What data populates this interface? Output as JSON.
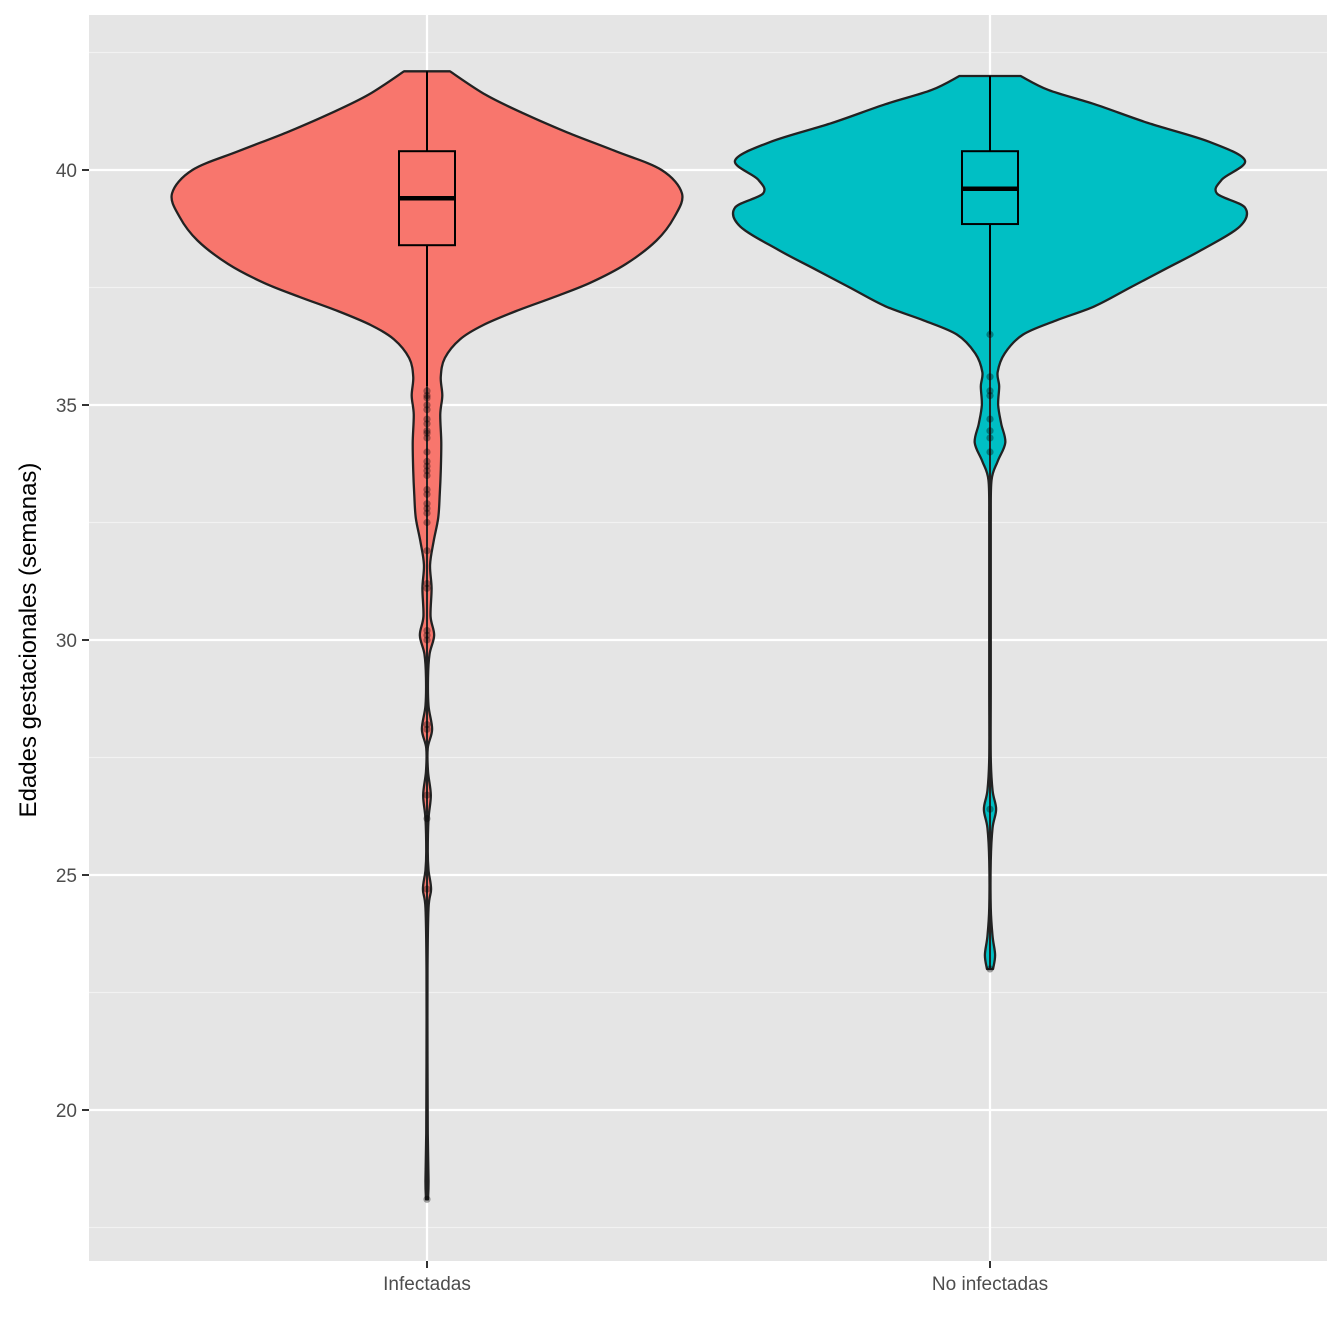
{
  "chart_data": {
    "type": "violin",
    "title": "",
    "xlabel": "",
    "ylabel": "Edades gestacionales (semanas)",
    "ylim": [
      17.0,
      43.5
    ],
    "y_ticks": [
      20,
      25,
      30,
      35,
      40
    ],
    "y_tick_labels": [
      "20",
      "25",
      "30",
      "35",
      "40"
    ],
    "grid": true,
    "legend": "none",
    "categories": [
      "Infectadas",
      "No infectadas"
    ],
    "series": [
      {
        "category": "Infectadas",
        "color": "#F8766D",
        "min": 18.1,
        "max": 42.1,
        "box": {
          "q1": 38.4,
          "median": 39.4,
          "q3": 40.4,
          "whisker_low": 35.4,
          "whisker_high": 42.1
        },
        "density": [
          [
            18.1,
            0.004
          ],
          [
            18.5,
            0.006
          ],
          [
            19.5,
            0.003
          ],
          [
            21,
            0.002
          ],
          [
            23,
            0.002
          ],
          [
            24.3,
            0.006
          ],
          [
            24.7,
            0.016
          ],
          [
            25.1,
            0.006
          ],
          [
            25.5,
            0.003
          ],
          [
            26.2,
            0.006
          ],
          [
            26.7,
            0.015
          ],
          [
            27.2,
            0.004
          ],
          [
            27.7,
            0.003
          ],
          [
            28.1,
            0.02
          ],
          [
            28.6,
            0.006
          ],
          [
            29.2,
            0.004
          ],
          [
            29.7,
            0.01
          ],
          [
            30.1,
            0.028
          ],
          [
            30.5,
            0.014
          ],
          [
            31.1,
            0.018
          ],
          [
            31.6,
            0.012
          ],
          [
            32.1,
            0.026
          ],
          [
            32.6,
            0.044
          ],
          [
            33.1,
            0.05
          ],
          [
            33.6,
            0.054
          ],
          [
            34.2,
            0.056
          ],
          [
            34.8,
            0.052
          ],
          [
            35.2,
            0.06
          ],
          [
            35.6,
            0.054
          ],
          [
            36.0,
            0.07
          ],
          [
            36.4,
            0.13
          ],
          [
            36.7,
            0.22
          ],
          [
            37.0,
            0.35
          ],
          [
            37.3,
            0.5
          ],
          [
            37.6,
            0.64
          ],
          [
            38.0,
            0.78
          ],
          [
            38.5,
            0.9
          ],
          [
            39.0,
            0.97
          ],
          [
            39.5,
            1.0
          ],
          [
            40.0,
            0.92
          ],
          [
            40.4,
            0.74
          ],
          [
            40.8,
            0.55
          ],
          [
            41.2,
            0.38
          ],
          [
            41.6,
            0.23
          ],
          [
            42.1,
            0.09
          ]
        ],
        "points": [
          35.3,
          35.2,
          35.15,
          35.0,
          34.9,
          34.7,
          34.6,
          34.45,
          34.4,
          34.3,
          34.0,
          33.8,
          33.7,
          33.6,
          33.5,
          33.2,
          33.1,
          32.9,
          32.8,
          32.7,
          32.5,
          31.9,
          31.2,
          31.1,
          30.2,
          30.1,
          30.0,
          28.2,
          28.1,
          26.7,
          26.2,
          24.7,
          18.1
        ]
      },
      {
        "category": "No infectadas",
        "color": "#00BFC4",
        "min": 23.0,
        "max": 42.0,
        "box": {
          "q1": 38.85,
          "median": 39.6,
          "q3": 40.4,
          "whisker_low": 36.5,
          "whisker_high": 42.0
        },
        "density": [
          [
            23.0,
            0.012
          ],
          [
            23.3,
            0.02
          ],
          [
            23.7,
            0.01
          ],
          [
            24.3,
            0.003
          ],
          [
            25.3,
            0.003
          ],
          [
            26.0,
            0.01
          ],
          [
            26.4,
            0.024
          ],
          [
            26.8,
            0.01
          ],
          [
            27.5,
            0.003
          ],
          [
            29,
            0.003
          ],
          [
            31,
            0.003
          ],
          [
            32.5,
            0.003
          ],
          [
            33.4,
            0.006
          ],
          [
            33.8,
            0.03
          ],
          [
            34.2,
            0.06
          ],
          [
            34.6,
            0.044
          ],
          [
            35.0,
            0.032
          ],
          [
            35.4,
            0.036
          ],
          [
            35.7,
            0.03
          ],
          [
            36.1,
            0.058
          ],
          [
            36.5,
            0.13
          ],
          [
            36.8,
            0.26
          ],
          [
            37.1,
            0.41
          ],
          [
            37.5,
            0.55
          ],
          [
            37.9,
            0.69
          ],
          [
            38.3,
            0.83
          ],
          [
            38.8,
            0.98
          ],
          [
            39.2,
            1.0
          ],
          [
            39.5,
            0.89
          ],
          [
            39.8,
            0.91
          ],
          [
            40.2,
            1.0
          ],
          [
            40.6,
            0.86
          ],
          [
            41.0,
            0.62
          ],
          [
            41.4,
            0.41
          ],
          [
            41.7,
            0.23
          ],
          [
            42.0,
            0.12
          ]
        ],
        "points": [
          36.5,
          35.6,
          35.3,
          35.2,
          34.7,
          34.45,
          34.3,
          34.0,
          26.4,
          23.0
        ]
      }
    ]
  }
}
